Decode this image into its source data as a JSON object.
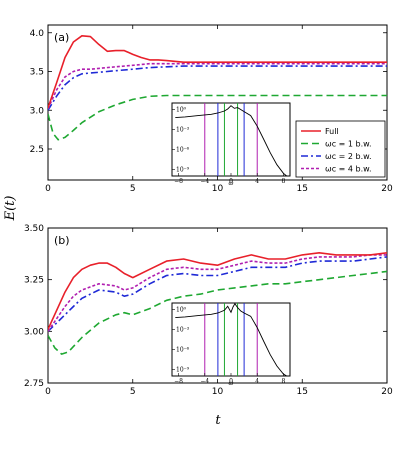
{
  "figure": {
    "ylabel": "E(t)",
    "xlabel": "t"
  },
  "legend": [
    {
      "key": "full",
      "label": "Full",
      "color": "#e8202a",
      "dash": "solid"
    },
    {
      "key": "wc1",
      "label": "ωc = 1 b.w.",
      "color": "#1fa832",
      "dash": "7,4"
    },
    {
      "key": "wc2",
      "label": "ωc = 2 b.w.",
      "color": "#1f2ad6",
      "dash": "7,3,2,3"
    },
    {
      "key": "wc4",
      "label": "ωc = 4 b.w.",
      "color": "#b01fb0",
      "dash": "3,2"
    }
  ],
  "chart_data": [
    {
      "panel": "(a)",
      "type": "line",
      "xlim": [
        0,
        20
      ],
      "ylim": [
        2.1,
        4.1
      ],
      "xticks": [
        "0",
        "5",
        "10",
        "15",
        "20"
      ],
      "yticks": [
        "2.5",
        "3.0",
        "3.5",
        "4.0"
      ],
      "series": [
        {
          "key": "full",
          "name": "Full",
          "x": [
            0,
            0.5,
            1,
            1.5,
            2,
            2.5,
            3,
            3.5,
            4,
            4.5,
            5,
            5.5,
            6,
            6.5,
            7,
            8,
            10,
            15,
            20
          ],
          "y": [
            3.03,
            3.35,
            3.68,
            3.88,
            3.96,
            3.95,
            3.85,
            3.76,
            3.77,
            3.77,
            3.72,
            3.68,
            3.65,
            3.65,
            3.64,
            3.62,
            3.62,
            3.62,
            3.62
          ]
        },
        {
          "key": "wc1",
          "name": "ωc = 1 b.w.",
          "x": [
            0,
            0.3,
            0.6,
            1,
            1.5,
            2,
            3,
            4,
            5,
            6,
            7,
            8,
            10,
            15,
            20
          ],
          "y": [
            2.95,
            2.7,
            2.62,
            2.65,
            2.74,
            2.84,
            2.98,
            3.07,
            3.14,
            3.18,
            3.19,
            3.19,
            3.19,
            3.19,
            3.19
          ]
        },
        {
          "key": "wc2",
          "name": "ωc = 2 b.w.",
          "x": [
            0,
            0.5,
            1,
            1.5,
            2,
            2.5,
            3,
            4,
            5,
            6,
            7,
            8,
            10,
            15,
            20
          ],
          "y": [
            3.0,
            3.18,
            3.33,
            3.42,
            3.47,
            3.48,
            3.49,
            3.51,
            3.53,
            3.55,
            3.56,
            3.57,
            3.57,
            3.57,
            3.57
          ]
        },
        {
          "key": "wc4",
          "name": "ωc = 4 b.w.",
          "x": [
            0,
            0.5,
            1,
            1.5,
            2,
            2.5,
            3,
            4,
            5,
            6,
            7,
            8,
            10,
            15,
            20
          ],
          "y": [
            3.02,
            3.26,
            3.43,
            3.5,
            3.53,
            3.53,
            3.54,
            3.56,
            3.58,
            3.6,
            3.6,
            3.6,
            3.6,
            3.6,
            3.6
          ]
        }
      ],
      "inset": {
        "xlabel": "ω",
        "xticks": [
          "−8",
          "−4",
          "0",
          "4",
          "8"
        ],
        "yticks": [
          "10⁰",
          "10⁻³",
          "10⁻⁶",
          "10⁻⁹"
        ],
        "xlim": [
          -9,
          9
        ],
        "ylim": [
          -10,
          1
        ],
        "curve_x": [
          -8.5,
          -7,
          -5,
          -3,
          -2,
          -1,
          -0.5,
          0,
          0.5,
          1,
          2,
          3,
          4,
          5,
          6,
          7,
          8,
          8.5
        ],
        "curve_y": [
          -1.2,
          -1.1,
          -0.9,
          -0.7,
          -0.5,
          -0.2,
          0.1,
          0.6,
          0.2,
          0.3,
          -0.3,
          -0.9,
          -2.5,
          -4.5,
          -6.5,
          -8.3,
          -9.6,
          -10
        ],
        "vlines": [
          {
            "x": -1,
            "color": "#1fa832"
          },
          {
            "x": 1,
            "color": "#1fa832"
          },
          {
            "x": -2,
            "color": "#1f2ad6"
          },
          {
            "x": 2,
            "color": "#1f2ad6"
          },
          {
            "x": -4,
            "color": "#b01fb0"
          },
          {
            "x": 4,
            "color": "#b01fb0"
          }
        ]
      }
    },
    {
      "panel": "(b)",
      "type": "line",
      "xlim": [
        0,
        20
      ],
      "ylim": [
        2.75,
        3.5
      ],
      "xticks": [
        "0",
        "5",
        "10",
        "15",
        "20"
      ],
      "yticks": [
        "2.75",
        "3.00",
        "3.25",
        "3.50"
      ],
      "series": [
        {
          "key": "full",
          "name": "Full",
          "x": [
            0,
            0.5,
            1,
            1.5,
            2,
            2.5,
            3,
            3.5,
            4,
            4.5,
            5,
            6,
            7,
            8,
            9,
            10,
            11,
            12,
            13,
            14,
            15,
            16,
            17,
            18,
            19,
            20
          ],
          "y": [
            3.01,
            3.1,
            3.19,
            3.26,
            3.3,
            3.32,
            3.33,
            3.33,
            3.31,
            3.28,
            3.26,
            3.3,
            3.34,
            3.35,
            3.33,
            3.32,
            3.35,
            3.37,
            3.35,
            3.35,
            3.37,
            3.38,
            3.37,
            3.37,
            3.37,
            3.38
          ]
        },
        {
          "key": "wc1",
          "name": "ωc = 1 b.w.",
          "x": [
            0,
            0.4,
            0.8,
            1.2,
            2,
            3,
            4,
            4.5,
            5,
            6,
            7,
            8,
            9,
            10,
            11,
            12,
            13,
            14,
            15,
            16,
            17,
            18,
            19,
            20
          ],
          "y": [
            2.98,
            2.92,
            2.89,
            2.9,
            2.97,
            3.04,
            3.08,
            3.09,
            3.08,
            3.11,
            3.15,
            3.17,
            3.18,
            3.2,
            3.21,
            3.22,
            3.23,
            3.23,
            3.24,
            3.25,
            3.26,
            3.27,
            3.28,
            3.29
          ]
        },
        {
          "key": "wc2",
          "name": "ωc = 2 b.w.",
          "x": [
            0,
            0.5,
            1,
            1.5,
            2,
            3,
            4,
            4.5,
            5,
            6,
            7,
            8,
            9,
            10,
            11,
            12,
            13,
            14,
            15,
            16,
            17,
            18,
            19,
            20
          ],
          "y": [
            3.0,
            3.04,
            3.08,
            3.12,
            3.16,
            3.2,
            3.19,
            3.17,
            3.18,
            3.23,
            3.27,
            3.28,
            3.27,
            3.27,
            3.29,
            3.31,
            3.31,
            3.31,
            3.33,
            3.34,
            3.34,
            3.34,
            3.35,
            3.36
          ]
        },
        {
          "key": "wc4",
          "name": "ωc = 4 b.w.",
          "x": [
            0,
            0.5,
            1,
            1.5,
            2,
            3,
            4,
            4.5,
            5,
            6,
            7,
            8,
            9,
            10,
            11,
            12,
            13,
            14,
            15,
            16,
            17,
            18,
            19,
            20
          ],
          "y": [
            3.0,
            3.06,
            3.12,
            3.17,
            3.2,
            3.23,
            3.22,
            3.2,
            3.21,
            3.26,
            3.3,
            3.31,
            3.3,
            3.3,
            3.32,
            3.34,
            3.33,
            3.33,
            3.35,
            3.36,
            3.36,
            3.36,
            3.37,
            3.37
          ]
        }
      ],
      "inset": {
        "xlabel": "ω",
        "xticks": [
          "−8",
          "−4",
          "0",
          "4",
          "8"
        ],
        "yticks": [
          "10⁰",
          "10⁻³",
          "10⁻⁶",
          "10⁻⁹"
        ],
        "xlim": [
          -9,
          9
        ],
        "ylim": [
          -10,
          1
        ],
        "curve_x": [
          -8.5,
          -7,
          -5,
          -3,
          -2,
          -1,
          -0.5,
          0,
          0.3,
          0.6,
          1,
          1.5,
          2,
          3,
          4,
          5,
          6,
          7,
          8,
          8.5
        ],
        "curve_y": [
          -1.2,
          -1.1,
          -0.9,
          -0.7,
          -0.5,
          -0.1,
          0.5,
          -0.4,
          0.4,
          0.9,
          0.3,
          -0.2,
          -0.5,
          -1.0,
          -2.7,
          -4.8,
          -6.8,
          -8.5,
          -9.7,
          -10
        ],
        "vlines": [
          {
            "x": -1,
            "color": "#1fa832"
          },
          {
            "x": 1,
            "color": "#1fa832"
          },
          {
            "x": -2,
            "color": "#1f2ad6"
          },
          {
            "x": 2,
            "color": "#1f2ad6"
          },
          {
            "x": -4,
            "color": "#b01fb0"
          },
          {
            "x": 4,
            "color": "#b01fb0"
          }
        ]
      }
    }
  ]
}
